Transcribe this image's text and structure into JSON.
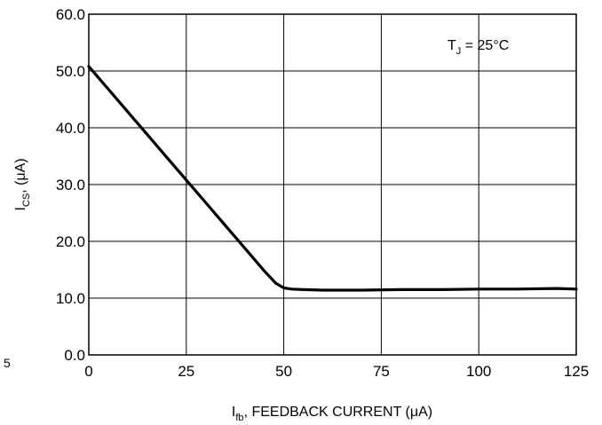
{
  "chart_data": {
    "type": "line",
    "title": "",
    "annotation": {
      "main": "T",
      "sub": "J",
      "rest": " = 25°C"
    },
    "xlabel": {
      "main": "I",
      "sub": "fb",
      "rest": ", FEEDBACK CURRENT (μA)"
    },
    "ylabel": {
      "main": "I",
      "sub": "CS",
      "rest": ", (μA)"
    },
    "xlim": [
      0,
      125
    ],
    "ylim": [
      0,
      60
    ],
    "xticks": [
      0,
      25,
      50,
      75,
      100,
      125
    ],
    "yticks": [
      0,
      10,
      20,
      30,
      40,
      50,
      60
    ],
    "xtick_labels": [
      "0",
      "25",
      "50",
      "75",
      "100",
      "125"
    ],
    "ytick_labels": [
      "0.0",
      "10.0",
      "20.0",
      "30.0",
      "40.0",
      "50.0",
      "60.0"
    ],
    "grid": true,
    "series": [
      {
        "x": [
          0,
          5,
          10,
          15,
          20,
          25,
          30,
          35,
          40,
          45,
          48,
          50,
          52,
          55,
          60,
          70,
          80,
          90,
          100,
          110,
          120,
          125
        ],
        "y": [
          50.8,
          46.8,
          42.8,
          38.8,
          34.8,
          30.8,
          26.8,
          22.8,
          18.8,
          14.8,
          12.6,
          11.8,
          11.6,
          11.5,
          11.4,
          11.4,
          11.5,
          11.5,
          11.6,
          11.6,
          11.7,
          11.6
        ]
      }
    ],
    "stray_mark": "5"
  }
}
